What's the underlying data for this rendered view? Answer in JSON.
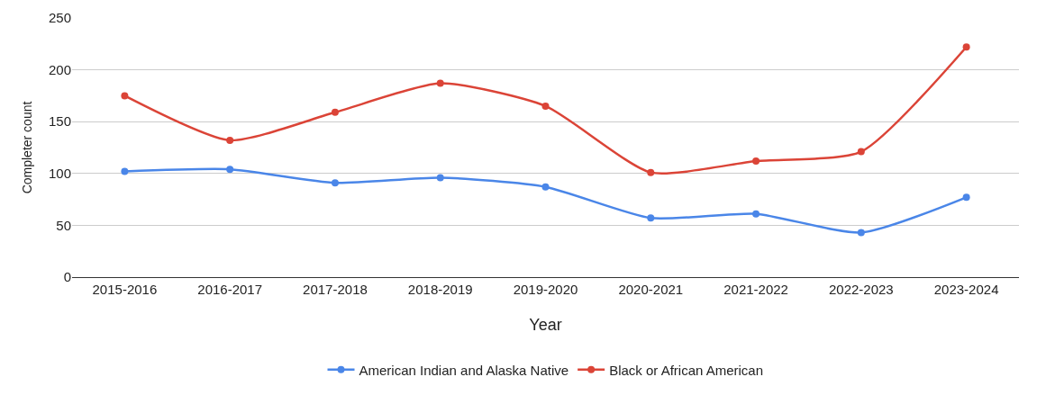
{
  "chart_data": {
    "type": "line",
    "xlabel": "Year",
    "ylabel": "Completer count",
    "categories": [
      "2015-2016",
      "2016-2017",
      "2017-2018",
      "2018-2019",
      "2019-2020",
      "2020-2021",
      "2021-2022",
      "2022-2023",
      "2023-2024"
    ],
    "series": [
      {
        "name": "American Indian and Alaska Native",
        "color": "#4a86e8",
        "values": [
          102,
          104,
          91,
          96,
          87,
          57,
          61,
          43,
          77
        ]
      },
      {
        "name": "Black or African American",
        "color": "#db4437",
        "values": [
          175,
          132,
          159,
          187,
          165,
          101,
          112,
          121,
          222
        ]
      }
    ],
    "ylim": [
      0,
      250
    ],
    "yticks": [
      0,
      50,
      100,
      150,
      200,
      250
    ],
    "grid": "y",
    "legend": "bottom",
    "marker": "circle",
    "line_style": "solid"
  }
}
